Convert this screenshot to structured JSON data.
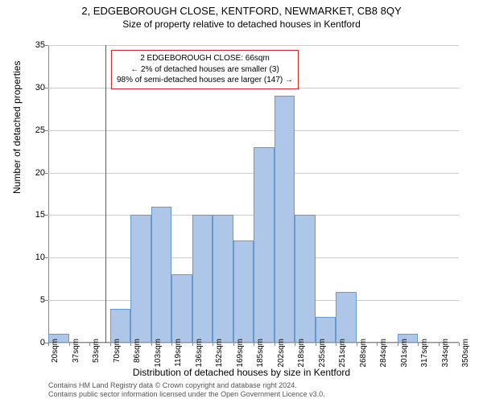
{
  "titles": {
    "main": "2, EDGEBOROUGH CLOSE, KENTFORD, NEWMARKET, CB8 8QY",
    "sub": "Size of property relative to detached houses in Kentford"
  },
  "axes": {
    "y_label": "Number of detached properties",
    "x_label": "Distribution of detached houses by size in Kentford",
    "y_ticks": [
      0,
      5,
      10,
      15,
      20,
      25,
      30,
      35
    ],
    "y_max": 35,
    "x_tick_labels": [
      "20sqm",
      "37sqm",
      "53sqm",
      "70sqm",
      "86sqm",
      "103sqm",
      "119sqm",
      "136sqm",
      "152sqm",
      "169sqm",
      "185sqm",
      "202sqm",
      "218sqm",
      "235sqm",
      "251sqm",
      "268sqm",
      "284sqm",
      "301sqm",
      "317sqm",
      "334sqm",
      "350sqm"
    ]
  },
  "chart": {
    "type": "histogram",
    "bar_fill": "#aec7e8",
    "bar_stroke": "#6699cc",
    "grid_color": "#cccccc",
    "marker_color": "#d62728",
    "background": "#ffffff",
    "values": [
      1,
      0,
      0,
      4,
      15,
      16,
      8,
      15,
      15,
      12,
      23,
      29,
      15,
      3,
      6,
      0,
      0,
      1,
      0,
      0
    ],
    "x_domain_min": 20,
    "x_domain_max": 350,
    "marker_x": 66
  },
  "annotation": {
    "line1": "2 EDGEBOROUGH CLOSE: 66sqm",
    "line2": "← 2% of detached houses are smaller (3)",
    "line3": "98% of semi-detached houses are larger (147) →"
  },
  "footer": {
    "line1": "Contains HM Land Registry data © Crown copyright and database right 2024.",
    "line2": "Contains public sector information licensed under the Open Government Licence v3.0."
  }
}
